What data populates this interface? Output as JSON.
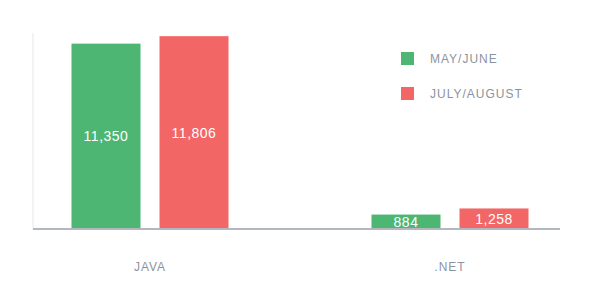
{
  "chart_data": {
    "type": "bar",
    "categories": [
      "JAVA",
      ".NET"
    ],
    "series": [
      {
        "name": "MAY/JUNE",
        "color": "#4db673",
        "values": [
          11350,
          884
        ],
        "value_labels": [
          "11,350",
          "884"
        ]
      },
      {
        "name": "JULY/AUGUST",
        "color": "#f26666",
        "values": [
          11806,
          1258
        ],
        "value_labels": [
          "11,806",
          "1,258"
        ]
      }
    ],
    "ylim": [
      0,
      12000
    ],
    "data_labels": true,
    "tick_labels": "x",
    "legend": "upper right"
  }
}
